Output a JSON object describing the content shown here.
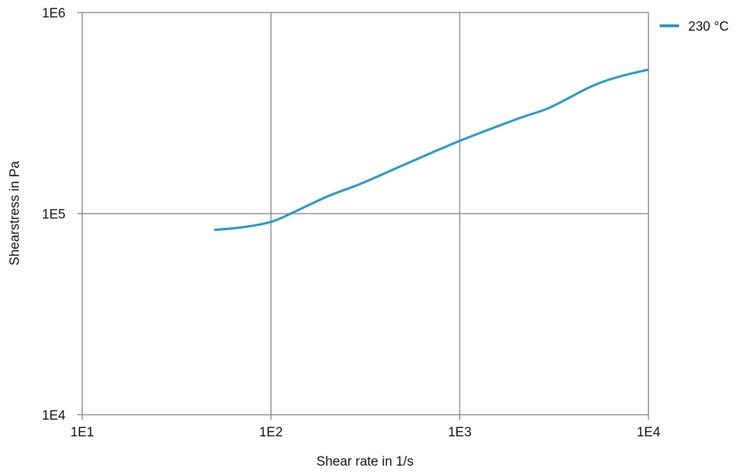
{
  "chart_data": {
    "type": "line",
    "title": "",
    "xlabel": "Shear rate in  1/s",
    "ylabel": "Shearstress in  Pa",
    "xscale": "log",
    "yscale": "log",
    "xlim": [
      10,
      10000
    ],
    "ylim": [
      10000,
      1000000
    ],
    "x_ticks": [
      10,
      100,
      1000,
      10000
    ],
    "x_tick_labels": [
      "1E1",
      "1E2",
      "1E3",
      "1E4"
    ],
    "y_ticks": [
      10000,
      100000,
      1000000
    ],
    "y_tick_labels": [
      "1E4",
      "1E5",
      "1E6"
    ],
    "grid": true,
    "legend_position": "top-right",
    "series": [
      {
        "name": "230 °C",
        "color": "#1a9ad6",
        "x": [
          50,
          70,
          100,
          130,
          200,
          300,
          500,
          1000,
          2000,
          3000,
          5000,
          7000,
          10000
        ],
        "y": [
          83000,
          85500,
          91000,
          101000,
          122000,
          141000,
          174000,
          230000,
          295000,
          337000,
          430000,
          480000,
          520000
        ]
      }
    ]
  }
}
